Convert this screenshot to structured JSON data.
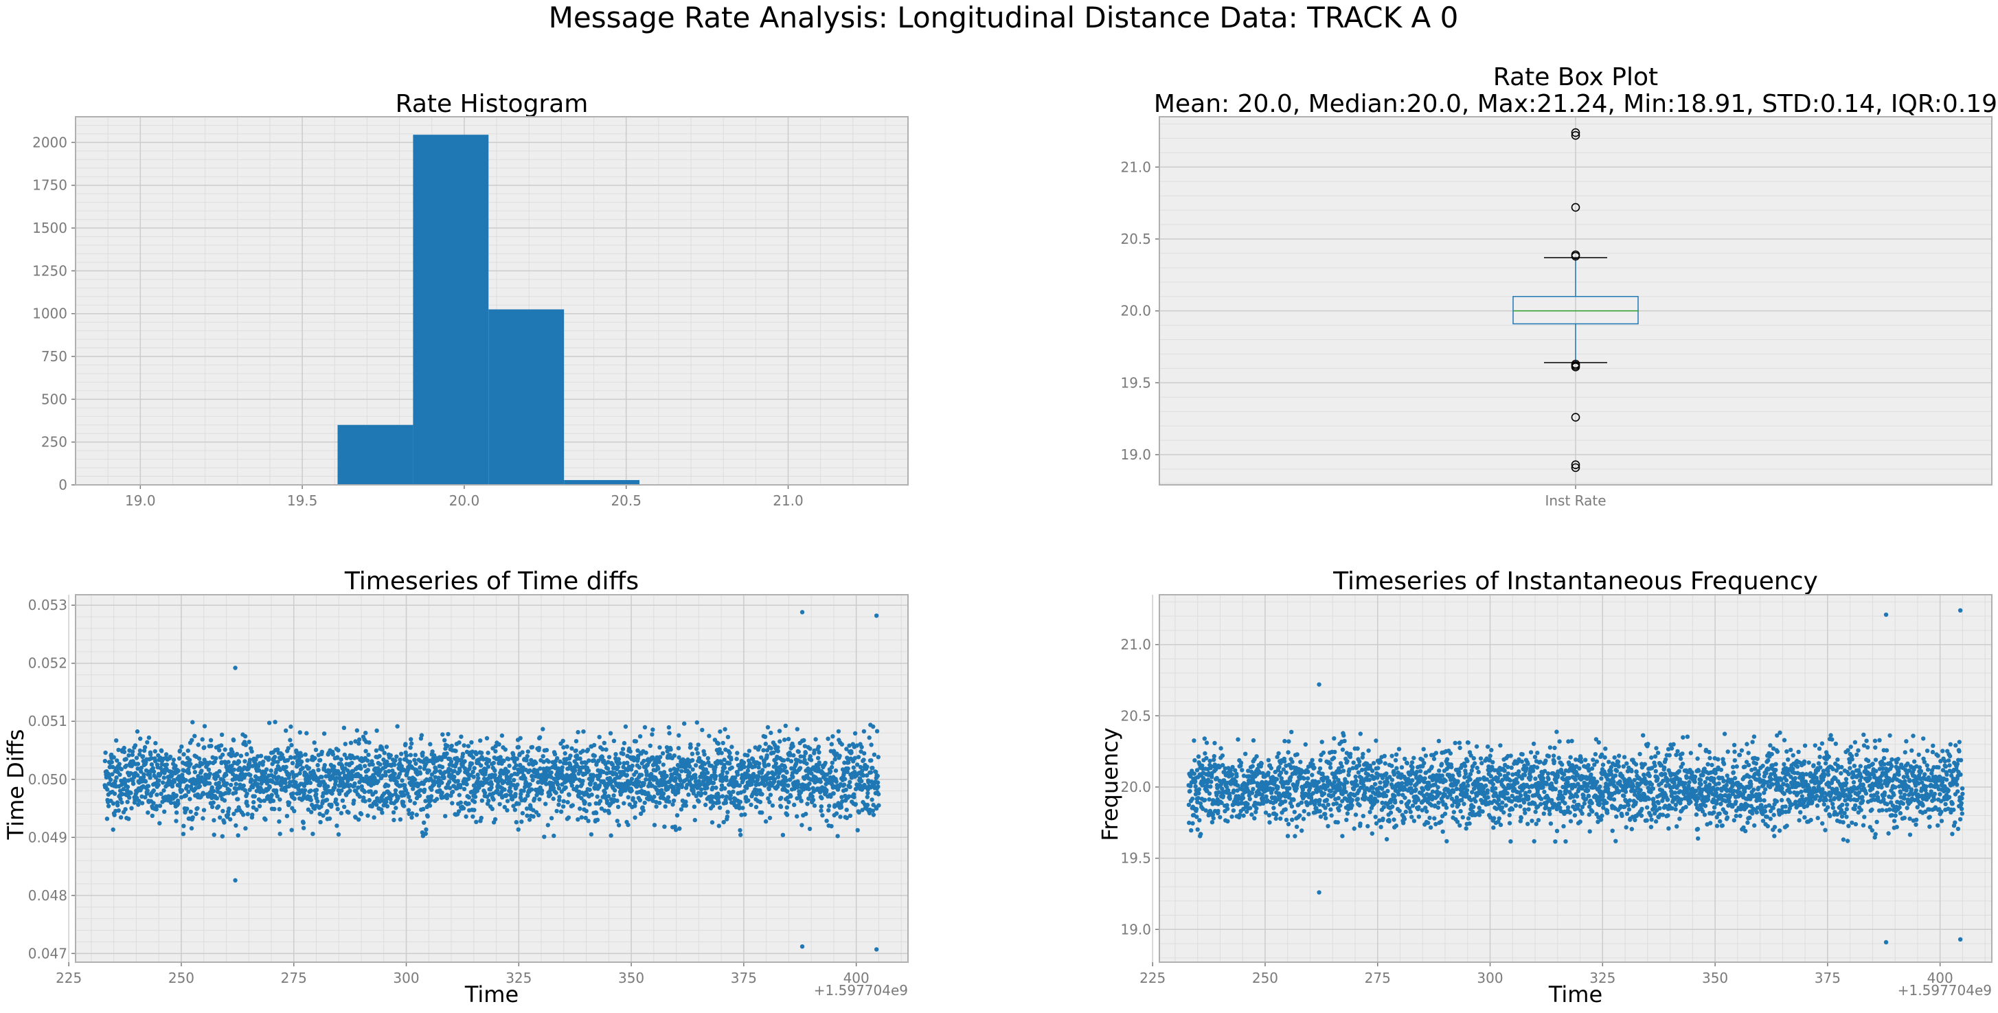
{
  "figure": {
    "title": "Message Rate Analysis: Longitudinal Distance Data: TRACK A 0",
    "axes_facecolor": "#eeeeee",
    "grid_major_color": "#cccccc",
    "grid_minor_color": "#dddddd",
    "series_color": "#1f77b4"
  },
  "chart_data": [
    {
      "id": "hist",
      "type": "bar",
      "title": "Rate Histogram",
      "xlabel": "",
      "ylabel": "",
      "xlim": [
        18.8,
        21.37
      ],
      "ylim": [
        0,
        2150
      ],
      "xticks": [
        19.0,
        19.5,
        20.0,
        20.5,
        21.0
      ],
      "xtick_labels": [
        "19.0",
        "19.5",
        "20.0",
        "20.5",
        "21.0"
      ],
      "yticks": [
        0,
        250,
        500,
        750,
        1000,
        1250,
        1500,
        1750,
        2000
      ],
      "ytick_labels": [
        "0",
        "250",
        "500",
        "750",
        "1000",
        "1250",
        "1500",
        "1750",
        "2000"
      ],
      "grid": true,
      "bins": [
        {
          "x0": 18.91,
          "x1": 19.143,
          "count": 2
        },
        {
          "x0": 19.143,
          "x1": 19.376,
          "count": 1
        },
        {
          "x0": 19.376,
          "x1": 19.609,
          "count": 0
        },
        {
          "x0": 19.609,
          "x1": 19.842,
          "count": 350
        },
        {
          "x0": 19.842,
          "x1": 20.075,
          "count": 2045
        },
        {
          "x0": 20.075,
          "x1": 20.308,
          "count": 1025
        },
        {
          "x0": 20.308,
          "x1": 20.541,
          "count": 28
        },
        {
          "x0": 20.541,
          "x1": 20.774,
          "count": 1
        },
        {
          "x0": 20.774,
          "x1": 21.007,
          "count": 0
        },
        {
          "x0": 21.007,
          "x1": 21.24,
          "count": 2
        }
      ]
    },
    {
      "id": "box",
      "type": "box",
      "title_line1": "Rate Box Plot",
      "title_line2": "Mean: 20.0, Median:20.0, Max:21.24, Min:18.91, STD:0.14, IQR:0.19",
      "category": "Inst Rate",
      "ylim": [
        18.79,
        21.35
      ],
      "yticks": [
        19.0,
        19.5,
        20.0,
        20.5,
        21.0
      ],
      "ytick_labels": [
        "19.0",
        "19.5",
        "20.0",
        "20.5",
        "21.0"
      ],
      "q1": 19.91,
      "median": 20.0,
      "q3": 20.1,
      "whisker_low": 19.64,
      "whisker_high": 20.37,
      "outliers": [
        18.91,
        18.93,
        19.26,
        19.61,
        19.62,
        19.63,
        20.38,
        20.39,
        20.72,
        21.22,
        21.24
      ],
      "box_color": "#1f77b4",
      "median_color": "#2ca02c",
      "grid": true
    },
    {
      "id": "ts_diffs",
      "type": "scatter",
      "title": "Timeseries of Time diffs",
      "xlabel": "Time",
      "ylabel": "Time Diffs",
      "offset_text": "+1.597704e9",
      "xlim": [
        226.5,
        411.5
      ],
      "ylim": [
        0.04685,
        0.05318
      ],
      "xticks": [
        225,
        250,
        275,
        300,
        325,
        350,
        375,
        400
      ],
      "xtick_labels": [
        "225",
        "250",
        "275",
        "300",
        "325",
        "350",
        "375",
        "400"
      ],
      "yticks": [
        0.047,
        0.048,
        0.049,
        0.05,
        0.051,
        0.052,
        0.053
      ],
      "ytick_labels": [
        "0.047",
        "0.048",
        "0.049",
        "0.050",
        "0.051",
        "0.052",
        "0.053"
      ],
      "band": {
        "t_start": 233.0,
        "t_end": 405.0,
        "center": 0.05,
        "std": 0.00033,
        "count": 3450
      },
      "outliers": [
        {
          "x": 262.0,
          "y": 0.05192
        },
        {
          "x": 262.0,
          "y": 0.04826
        },
        {
          "x": 388.0,
          "y": 0.05288
        },
        {
          "x": 388.0,
          "y": 0.04712
        },
        {
          "x": 404.5,
          "y": 0.05282
        },
        {
          "x": 404.5,
          "y": 0.04707
        }
      ],
      "grid": true
    },
    {
      "id": "ts_freq",
      "type": "scatter",
      "title": "Timeseries of Instantaneous Frequency",
      "xlabel": "Time",
      "ylabel": "Frequency",
      "offset_text": "+1.597704e9",
      "xlim": [
        226.5,
        411.5
      ],
      "ylim": [
        18.77,
        21.35
      ],
      "xticks": [
        225,
        250,
        275,
        300,
        325,
        350,
        375,
        400
      ],
      "xtick_labels": [
        "225",
        "250",
        "275",
        "300",
        "325",
        "350",
        "375",
        "400"
      ],
      "yticks": [
        19.0,
        19.5,
        20.0,
        20.5,
        21.0
      ],
      "ytick_labels": [
        "19.0",
        "19.5",
        "20.0",
        "20.5",
        "21.0"
      ],
      "band": {
        "t_start": 233.0,
        "t_end": 405.0,
        "center": 20.0,
        "std": 0.13,
        "count": 3450
      },
      "outliers": [
        {
          "x": 262.0,
          "y": 20.72
        },
        {
          "x": 262.0,
          "y": 19.26
        },
        {
          "x": 388.0,
          "y": 21.21
        },
        {
          "x": 388.0,
          "y": 18.91
        },
        {
          "x": 404.5,
          "y": 21.24
        },
        {
          "x": 404.5,
          "y": 18.93
        }
      ],
      "grid": true
    }
  ]
}
